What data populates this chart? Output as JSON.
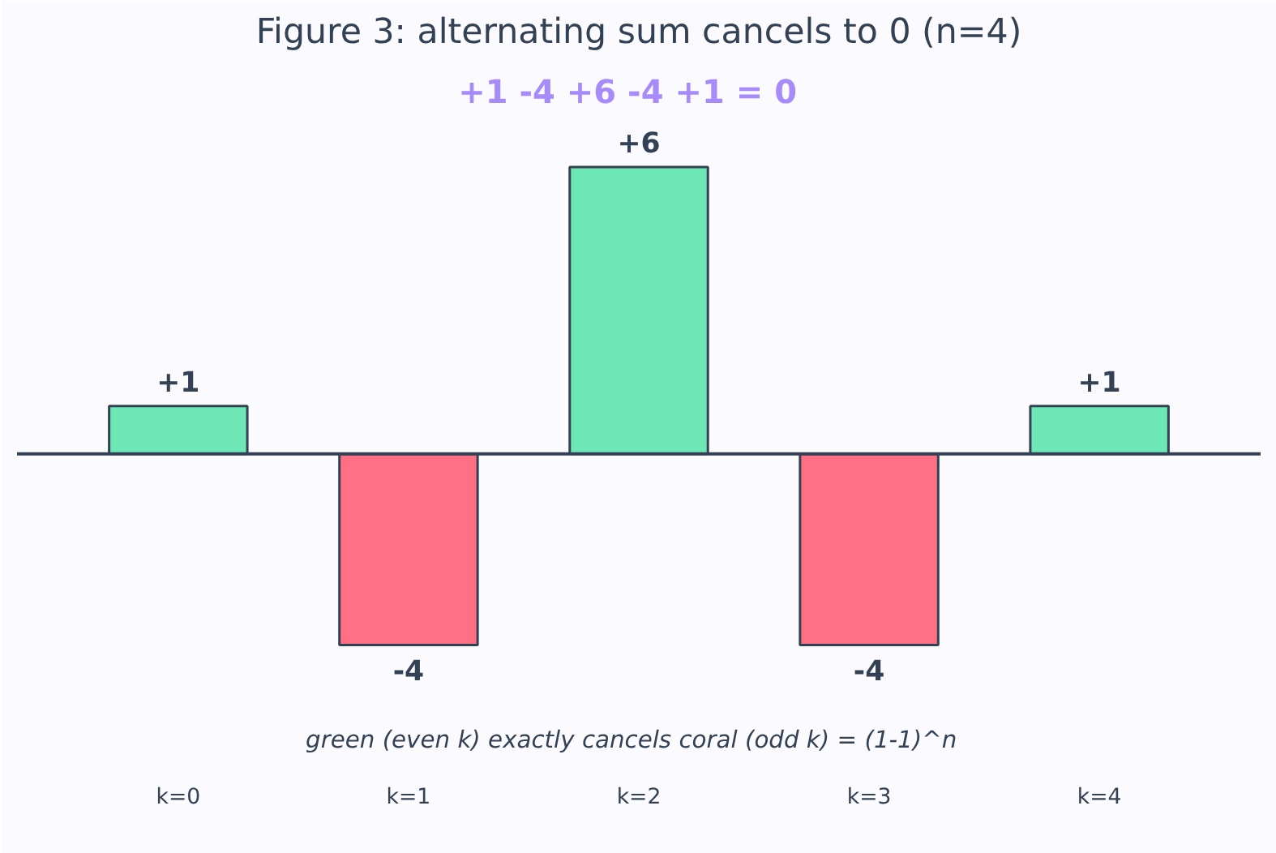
{
  "chart_data": {
    "type": "bar",
    "title": "Figure 3: alternating sum cancels to 0 (n=4)",
    "subtitle": "+1 -4 +6 -4 +1  =  0",
    "categories": [
      "k=0",
      "k=1",
      "k=2",
      "k=3",
      "k=4"
    ],
    "values": [
      1,
      -4,
      6,
      -4,
      1
    ],
    "colors": [
      "#6ee7b7",
      "#ff7085",
      "#6ee7b7",
      "#ff7085",
      "#6ee7b7"
    ],
    "value_labels": [
      "+1",
      "-4",
      "+6",
      "-4",
      "+1"
    ],
    "annotations": [
      "green (even k) exactly cancels coral (odd k)  =  (1-1)^n"
    ],
    "grid": false
  }
}
